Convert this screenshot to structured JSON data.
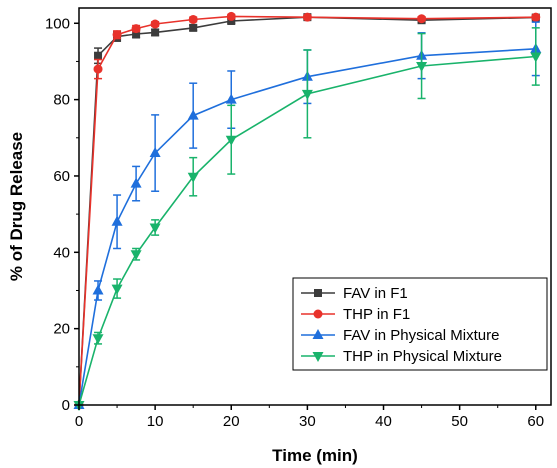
{
  "chart_data": {
    "type": "line",
    "xlabel": "Time (min)",
    "ylabel": "% of Drug Release",
    "xlim": [
      0,
      62
    ],
    "ylim": [
      0,
      104
    ],
    "xticks": [
      0,
      10,
      20,
      30,
      40,
      50,
      60
    ],
    "yticks": [
      0,
      20,
      40,
      60,
      80,
      100
    ],
    "grid": false,
    "legend_position": "bottom-right",
    "series": [
      {
        "name": "FAV in F1",
        "color": "#3c3c3c",
        "marker": "square",
        "points": [
          {
            "x": 0,
            "y": 0,
            "err": 0
          },
          {
            "x": 2.5,
            "y": 91.5,
            "err": 2.0
          },
          {
            "x": 5,
            "y": 96.5,
            "err": 1.2
          },
          {
            "x": 7.5,
            "y": 97.2,
            "err": 1.0
          },
          {
            "x": 10,
            "y": 97.6,
            "err": 0.8
          },
          {
            "x": 15,
            "y": 98.8,
            "err": 0.7
          },
          {
            "x": 20,
            "y": 100.6,
            "err": 0.6
          },
          {
            "x": 30,
            "y": 101.6,
            "err": 0.5
          },
          {
            "x": 45,
            "y": 100.8,
            "err": 0.5
          },
          {
            "x": 60,
            "y": 101.5,
            "err": 0.5
          }
        ]
      },
      {
        "name": "THP in F1",
        "color": "#e8322b",
        "marker": "circle",
        "points": [
          {
            "x": 0,
            "y": 0,
            "err": 0
          },
          {
            "x": 2.5,
            "y": 88.0,
            "err": 2.5
          },
          {
            "x": 5,
            "y": 97.0,
            "err": 1.0
          },
          {
            "x": 7.5,
            "y": 98.6,
            "err": 0.8
          },
          {
            "x": 10,
            "y": 99.8,
            "err": 0.6
          },
          {
            "x": 15,
            "y": 101.0,
            "err": 0.6
          },
          {
            "x": 20,
            "y": 101.8,
            "err": 0.5
          },
          {
            "x": 30,
            "y": 101.6,
            "err": 0.5
          },
          {
            "x": 45,
            "y": 101.2,
            "err": 0.5
          },
          {
            "x": 60,
            "y": 101.6,
            "err": 0.5
          }
        ]
      },
      {
        "name": "FAV in Physical Mixture",
        "color": "#1f6fdc",
        "marker": "triangle-up",
        "points": [
          {
            "x": 0,
            "y": 0,
            "err": 0
          },
          {
            "x": 2.5,
            "y": 30.0,
            "err": 2.5
          },
          {
            "x": 5,
            "y": 48.0,
            "err": 7.0
          },
          {
            "x": 7.5,
            "y": 58.0,
            "err": 4.5
          },
          {
            "x": 10,
            "y": 66.0,
            "err": 10.0
          },
          {
            "x": 15,
            "y": 75.8,
            "err": 8.5
          },
          {
            "x": 20,
            "y": 80.0,
            "err": 7.5
          },
          {
            "x": 30,
            "y": 86.0,
            "err": 7.0
          },
          {
            "x": 45,
            "y": 91.5,
            "err": 6.0
          },
          {
            "x": 60,
            "y": 93.3,
            "err": 7.0
          }
        ]
      },
      {
        "name": "THP in Physical Mixture",
        "color": "#19b36b",
        "marker": "triangle-down",
        "points": [
          {
            "x": 0,
            "y": 0,
            "err": 0
          },
          {
            "x": 2.5,
            "y": 17.5,
            "err": 1.5
          },
          {
            "x": 5,
            "y": 30.5,
            "err": 2.5
          },
          {
            "x": 7.5,
            "y": 39.5,
            "err": 1.5
          },
          {
            "x": 10,
            "y": 46.5,
            "err": 2.0
          },
          {
            "x": 15,
            "y": 59.8,
            "err": 5.0
          },
          {
            "x": 20,
            "y": 69.5,
            "err": 9.0
          },
          {
            "x": 30,
            "y": 81.5,
            "err": 11.5
          },
          {
            "x": 45,
            "y": 88.8,
            "err": 8.5
          },
          {
            "x": 60,
            "y": 91.3,
            "err": 7.5
          }
        ]
      }
    ]
  }
}
